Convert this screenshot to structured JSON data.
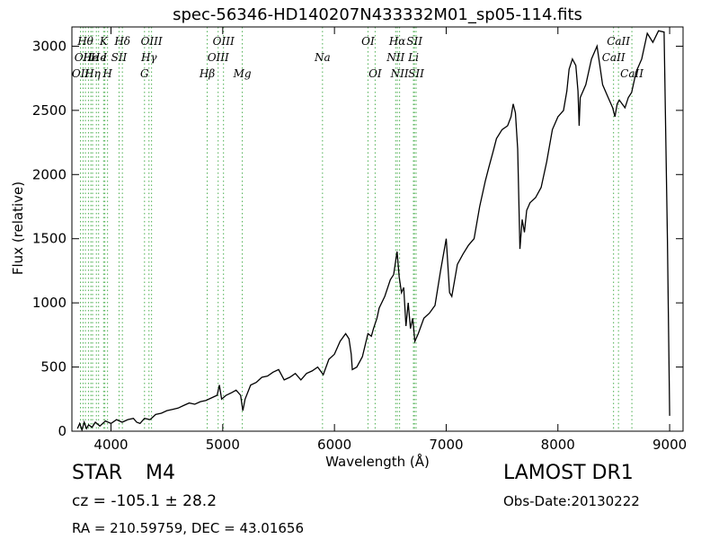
{
  "title": "spec-56346-HD140207N433332M01_sp05-114.fits",
  "info": {
    "class": "STAR",
    "subclass": "M4",
    "cz": "cz = -105.1 ± 28.2",
    "radec": "RA = 210.59759, DEC = 43.01656",
    "survey": "LAMOST DR1",
    "obs_date": "Obs-Date:20130222"
  },
  "chart_data": {
    "type": "line",
    "xlabel": "Wavelength (Å)",
    "ylabel": "Flux (relative)",
    "xlim": [
      3650,
      9120
    ],
    "ylim": [
      0,
      3150
    ],
    "xticks": [
      4000,
      5000,
      6000,
      7000,
      8000,
      9000
    ],
    "yticks": [
      0,
      500,
      1000,
      1500,
      2000,
      2500,
      3000
    ],
    "grid": false,
    "line_color": "#000000",
    "marker_color": "#4caf50",
    "series": [
      {
        "points": [
          [
            3700,
            20
          ],
          [
            3720,
            60
          ],
          [
            3740,
            10
          ],
          [
            3760,
            70
          ],
          [
            3780,
            20
          ],
          [
            3800,
            50
          ],
          [
            3830,
            30
          ],
          [
            3860,
            70
          ],
          [
            3900,
            40
          ],
          [
            3950,
            80
          ],
          [
            4000,
            60
          ],
          [
            4050,
            90
          ],
          [
            4100,
            70
          ],
          [
            4150,
            90
          ],
          [
            4200,
            100
          ],
          [
            4230,
            70
          ],
          [
            4260,
            60
          ],
          [
            4300,
            100
          ],
          [
            4350,
            90
          ],
          [
            4400,
            130
          ],
          [
            4450,
            140
          ],
          [
            4500,
            160
          ],
          [
            4550,
            170
          ],
          [
            4600,
            180
          ],
          [
            4650,
            200
          ],
          [
            4700,
            220
          ],
          [
            4750,
            210
          ],
          [
            4800,
            230
          ],
          [
            4850,
            240
          ],
          [
            4900,
            260
          ],
          [
            4950,
            280
          ],
          [
            4970,
            360
          ],
          [
            4990,
            250
          ],
          [
            5030,
            280
          ],
          [
            5080,
            300
          ],
          [
            5120,
            320
          ],
          [
            5160,
            280
          ],
          [
            5180,
            160
          ],
          [
            5200,
            250
          ],
          [
            5250,
            360
          ],
          [
            5300,
            380
          ],
          [
            5350,
            420
          ],
          [
            5400,
            430
          ],
          [
            5450,
            460
          ],
          [
            5500,
            480
          ],
          [
            5550,
            400
          ],
          [
            5600,
            420
          ],
          [
            5650,
            450
          ],
          [
            5700,
            400
          ],
          [
            5750,
            450
          ],
          [
            5800,
            470
          ],
          [
            5850,
            500
          ],
          [
            5900,
            440
          ],
          [
            5950,
            560
          ],
          [
            6000,
            600
          ],
          [
            6050,
            700
          ],
          [
            6100,
            760
          ],
          [
            6130,
            720
          ],
          [
            6150,
            600
          ],
          [
            6160,
            480
          ],
          [
            6200,
            500
          ],
          [
            6250,
            580
          ],
          [
            6300,
            760
          ],
          [
            6330,
            740
          ],
          [
            6350,
            800
          ],
          [
            6380,
            880
          ],
          [
            6400,
            960
          ],
          [
            6450,
            1050
          ],
          [
            6500,
            1180
          ],
          [
            6530,
            1220
          ],
          [
            6560,
            1400
          ],
          [
            6580,
            1200
          ],
          [
            6600,
            1080
          ],
          [
            6620,
            1120
          ],
          [
            6640,
            820
          ],
          [
            6660,
            1000
          ],
          [
            6680,
            800
          ],
          [
            6700,
            880
          ],
          [
            6720,
            700
          ],
          [
            6750,
            760
          ],
          [
            6800,
            880
          ],
          [
            6850,
            920
          ],
          [
            6900,
            980
          ],
          [
            6950,
            1250
          ],
          [
            7000,
            1500
          ],
          [
            7030,
            1080
          ],
          [
            7050,
            1050
          ],
          [
            7100,
            1300
          ],
          [
            7150,
            1380
          ],
          [
            7200,
            1450
          ],
          [
            7250,
            1500
          ],
          [
            7300,
            1750
          ],
          [
            7350,
            1950
          ],
          [
            7380,
            2050
          ],
          [
            7420,
            2180
          ],
          [
            7450,
            2280
          ],
          [
            7500,
            2350
          ],
          [
            7550,
            2380
          ],
          [
            7580,
            2450
          ],
          [
            7600,
            2550
          ],
          [
            7620,
            2480
          ],
          [
            7640,
            2200
          ],
          [
            7660,
            1420
          ],
          [
            7680,
            1650
          ],
          [
            7700,
            1550
          ],
          [
            7720,
            1720
          ],
          [
            7750,
            1780
          ],
          [
            7800,
            1820
          ],
          [
            7850,
            1900
          ],
          [
            7900,
            2100
          ],
          [
            7950,
            2350
          ],
          [
            8000,
            2450
          ],
          [
            8050,
            2500
          ],
          [
            8080,
            2650
          ],
          [
            8100,
            2820
          ],
          [
            8130,
            2900
          ],
          [
            8160,
            2850
          ],
          [
            8180,
            2650
          ],
          [
            8190,
            2380
          ],
          [
            8200,
            2600
          ],
          [
            8250,
            2700
          ],
          [
            8300,
            2900
          ],
          [
            8350,
            3000
          ],
          [
            8400,
            2700
          ],
          [
            8450,
            2600
          ],
          [
            8490,
            2520
          ],
          [
            8510,
            2450
          ],
          [
            8530,
            2550
          ],
          [
            8550,
            2580
          ],
          [
            8600,
            2520
          ],
          [
            8630,
            2600
          ],
          [
            8660,
            2640
          ],
          [
            8700,
            2800
          ],
          [
            8750,
            2900
          ],
          [
            8800,
            3100
          ],
          [
            8850,
            3030
          ],
          [
            8900,
            3120
          ],
          [
            8950,
            3110
          ],
          [
            8980,
            1500
          ],
          [
            9000,
            120
          ]
        ]
      }
    ],
    "lines": [
      {
        "x": 3727,
        "row": 2,
        "label": "OII"
      },
      {
        "x": 3750,
        "row": 1,
        "label": "OII"
      },
      {
        "x": 3771,
        "row": 0,
        "label": "Hθ"
      },
      {
        "x": 3798,
        "row": 0,
        "label": ""
      },
      {
        "x": 3820,
        "row": 1,
        "label": "He"
      },
      {
        "x": 3835,
        "row": 2,
        "label": "Hη"
      },
      {
        "x": 3869,
        "row": 0,
        "label": ""
      },
      {
        "x": 3889,
        "row": 1,
        "label": "He"
      },
      {
        "x": 3934,
        "row": 0,
        "label": "K"
      },
      {
        "x": 3945,
        "row": 1,
        "label": "I"
      },
      {
        "x": 3969,
        "row": 2,
        "label": "H"
      },
      {
        "x": 4072,
        "row": 1,
        "label": "SII"
      },
      {
        "x": 4102,
        "row": 0,
        "label": "Hδ"
      },
      {
        "x": 4300,
        "row": 2,
        "label": "G"
      },
      {
        "x": 4340,
        "row": 1,
        "label": "Hγ"
      },
      {
        "x": 4363,
        "row": 0,
        "label": "OIII"
      },
      {
        "x": 4861,
        "row": 2,
        "label": "Hβ"
      },
      {
        "x": 4959,
        "row": 1,
        "label": "OIII"
      },
      {
        "x": 5007,
        "row": 0,
        "label": "OIII"
      },
      {
        "x": 5175,
        "row": 2,
        "label": "Mg"
      },
      {
        "x": 5893,
        "row": 1,
        "label": "Na"
      },
      {
        "x": 6300,
        "row": 0,
        "label": "OI"
      },
      {
        "x": 6364,
        "row": 2,
        "label": "OI"
      },
      {
        "x": 6548,
        "row": 1,
        "label": "NII"
      },
      {
        "x": 6563,
        "row": 0,
        "label": "Hα"
      },
      {
        "x": 6583,
        "row": 2,
        "label": "NII"
      },
      {
        "x": 6707,
        "row": 1,
        "label": "Li"
      },
      {
        "x": 6716,
        "row": 0,
        "label": "SII"
      },
      {
        "x": 6731,
        "row": 2,
        "label": "SII"
      },
      {
        "x": 8498,
        "row": 1,
        "label": "CaII"
      },
      {
        "x": 8542,
        "row": 0,
        "label": "CaII"
      },
      {
        "x": 8662,
        "row": 2,
        "label": "CaII"
      }
    ]
  }
}
